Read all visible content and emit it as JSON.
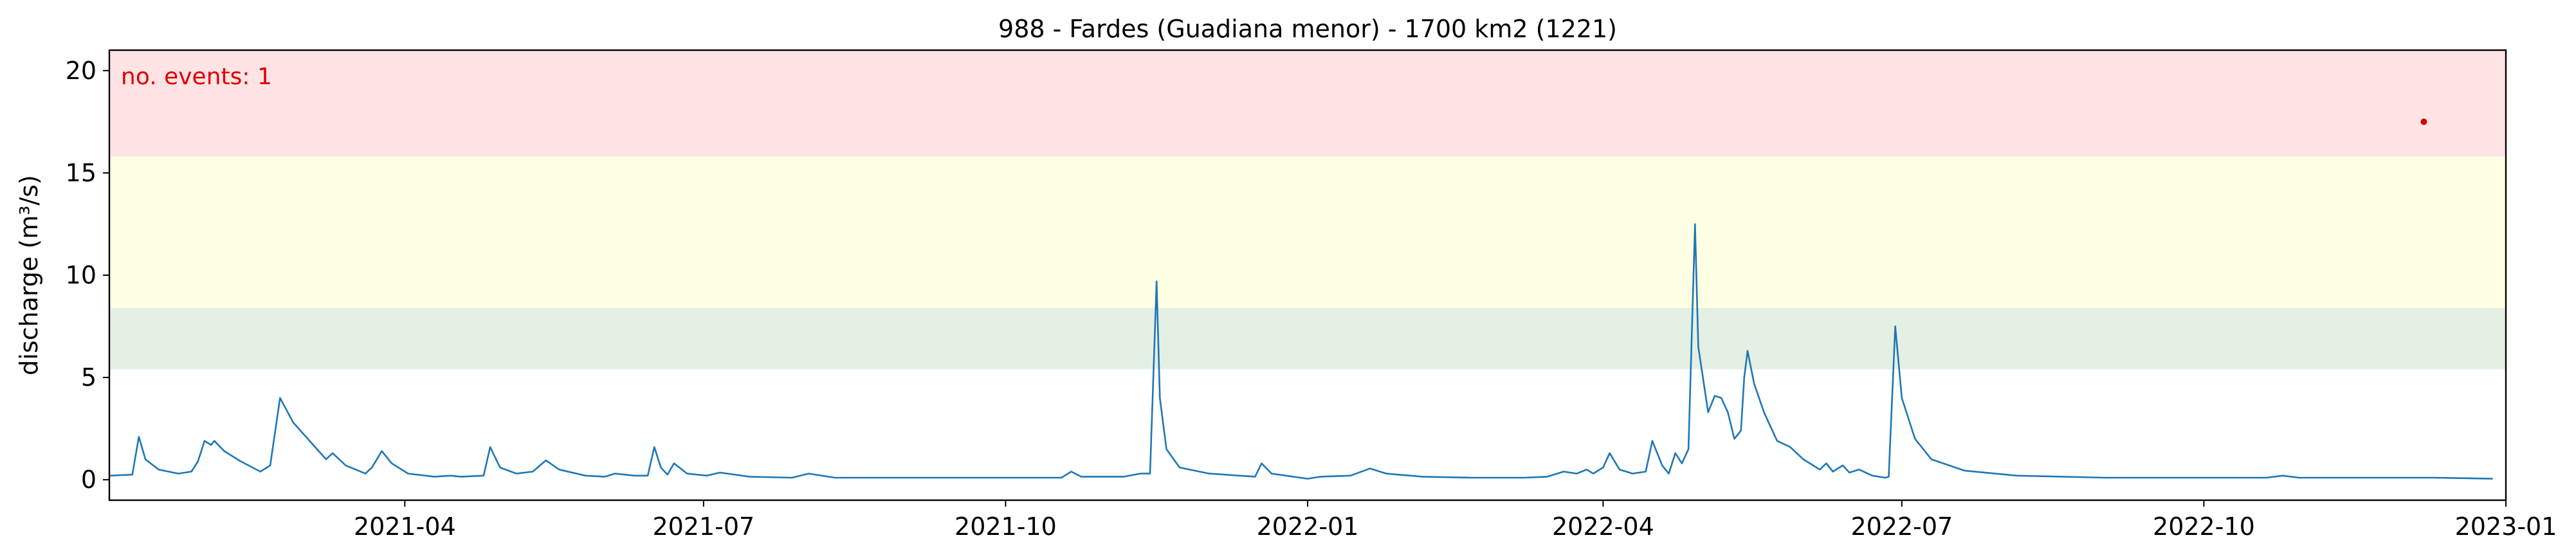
{
  "chart_data": {
    "type": "line",
    "title": "988 - Fardes (Guadiana menor) - 1700 km2 (1221)",
    "xlabel": "",
    "ylabel": "discharge (m³/s)",
    "annotation": "no. events: 1",
    "xlim": [
      "2021-01-01",
      "2023-01-01"
    ],
    "ylim": [
      -1,
      21
    ],
    "x_ticks": [
      "2021-04",
      "2021-07",
      "2021-10",
      "2022-01",
      "2022-04",
      "2022-07",
      "2022-10",
      "2023-01"
    ],
    "y_ticks": [
      0,
      5,
      10,
      15,
      20
    ],
    "grid": false,
    "threshold_bands": [
      {
        "from": 5.4,
        "to": 8.4,
        "color": "#e5f0e5"
      },
      {
        "from": 8.4,
        "to": 15.8,
        "color": "#ffffe3"
      },
      {
        "from": 15.8,
        "to": 21,
        "color": "#ffe3e5"
      }
    ],
    "series": [
      {
        "color": "#1f77b4",
        "points": [
          [
            "2021-01-01",
            0.2
          ],
          [
            "2021-01-08",
            0.25
          ],
          [
            "2021-01-10",
            2.1
          ],
          [
            "2021-01-12",
            1.0
          ],
          [
            "2021-01-16",
            0.5
          ],
          [
            "2021-01-22",
            0.3
          ],
          [
            "2021-01-26",
            0.4
          ],
          [
            "2021-01-28",
            0.9
          ],
          [
            "2021-01-30",
            1.9
          ],
          [
            "2021-02-01",
            1.7
          ],
          [
            "2021-02-02",
            1.9
          ],
          [
            "2021-02-05",
            1.4
          ],
          [
            "2021-02-10",
            0.9
          ],
          [
            "2021-02-16",
            0.4
          ],
          [
            "2021-02-19",
            0.7
          ],
          [
            "2021-02-22",
            4.0
          ],
          [
            "2021-02-26",
            2.8
          ],
          [
            "2021-03-03",
            1.9
          ],
          [
            "2021-03-08",
            1.0
          ],
          [
            "2021-03-10",
            1.3
          ],
          [
            "2021-03-14",
            0.7
          ],
          [
            "2021-03-20",
            0.3
          ],
          [
            "2021-03-22",
            0.6
          ],
          [
            "2021-03-25",
            1.4
          ],
          [
            "2021-03-28",
            0.8
          ],
          [
            "2021-04-02",
            0.3
          ],
          [
            "2021-04-10",
            0.15
          ],
          [
            "2021-04-15",
            0.2
          ],
          [
            "2021-04-18",
            0.15
          ],
          [
            "2021-04-25",
            0.2
          ],
          [
            "2021-04-27",
            1.6
          ],
          [
            "2021-04-30",
            0.6
          ],
          [
            "2021-05-05",
            0.3
          ],
          [
            "2021-05-10",
            0.4
          ],
          [
            "2021-05-14",
            0.95
          ],
          [
            "2021-05-18",
            0.5
          ],
          [
            "2021-05-26",
            0.2
          ],
          [
            "2021-06-01",
            0.15
          ],
          [
            "2021-06-04",
            0.3
          ],
          [
            "2021-06-10",
            0.2
          ],
          [
            "2021-06-14",
            0.2
          ],
          [
            "2021-06-16",
            1.6
          ],
          [
            "2021-06-18",
            0.6
          ],
          [
            "2021-06-20",
            0.25
          ],
          [
            "2021-06-22",
            0.8
          ],
          [
            "2021-06-26",
            0.3
          ],
          [
            "2021-07-02",
            0.2
          ],
          [
            "2021-07-06",
            0.35
          ],
          [
            "2021-07-15",
            0.15
          ],
          [
            "2021-07-28",
            0.1
          ],
          [
            "2021-08-02",
            0.3
          ],
          [
            "2021-08-10",
            0.1
          ],
          [
            "2021-09-01",
            0.1
          ],
          [
            "2021-09-20",
            0.1
          ],
          [
            "2021-10-01",
            0.1
          ],
          [
            "2021-10-18",
            0.1
          ],
          [
            "2021-10-21",
            0.4
          ],
          [
            "2021-10-24",
            0.15
          ],
          [
            "2021-11-06",
            0.15
          ],
          [
            "2021-11-11",
            0.3
          ],
          [
            "2021-11-14",
            0.3
          ],
          [
            "2021-11-16",
            9.7
          ],
          [
            "2021-11-17",
            4.0
          ],
          [
            "2021-11-19",
            1.5
          ],
          [
            "2021-11-23",
            0.6
          ],
          [
            "2021-12-02",
            0.3
          ],
          [
            "2021-12-16",
            0.15
          ],
          [
            "2021-12-18",
            0.8
          ],
          [
            "2021-12-21",
            0.3
          ],
          [
            "2022-01-05",
            0.15
          ],
          [
            "2022-01-14",
            0.2
          ],
          [
            "2022-01-20",
            0.55
          ],
          [
            "2022-01-25",
            0.3
          ],
          [
            "2022-02-05",
            0.15
          ],
          [
            "2022-02-20",
            0.1
          ],
          [
            "2022-03-08",
            0.1
          ],
          [
            "2022-03-15",
            0.15
          ],
          [
            "2022-03-20",
            0.4
          ],
          [
            "2022-03-24",
            0.3
          ],
          [
            "2022-03-27",
            0.5
          ],
          [
            "2022-03-29",
            0.3
          ],
          [
            "2022-04-01",
            0.6
          ],
          [
            "2022-04-03",
            1.3
          ],
          [
            "2022-04-06",
            0.5
          ],
          [
            "2022-04-10",
            0.3
          ],
          [
            "2022-04-14",
            0.4
          ],
          [
            "2022-04-16",
            1.9
          ],
          [
            "2022-04-19",
            0.7
          ],
          [
            "2022-04-21",
            0.3
          ],
          [
            "2022-04-23",
            1.3
          ],
          [
            "2022-04-25",
            0.8
          ],
          [
            "2022-04-27",
            1.5
          ],
          [
            "2022-04-28",
            7.0
          ],
          [
            "2022-04-29",
            12.5
          ],
          [
            "2022-04-30",
            6.5
          ],
          [
            "2022-05-03",
            3.3
          ],
          [
            "2022-05-05",
            4.1
          ],
          [
            "2022-05-07",
            4.0
          ],
          [
            "2022-05-09",
            3.3
          ],
          [
            "2022-05-11",
            2.0
          ],
          [
            "2022-05-13",
            2.4
          ],
          [
            "2022-05-14",
            5.0
          ],
          [
            "2022-05-15",
            6.3
          ],
          [
            "2022-05-17",
            4.7
          ],
          [
            "2022-05-20",
            3.3
          ],
          [
            "2022-05-24",
            1.9
          ],
          [
            "2022-05-28",
            1.6
          ],
          [
            "2022-06-01",
            1.0
          ],
          [
            "2022-06-04",
            0.7
          ],
          [
            "2022-06-06",
            0.5
          ],
          [
            "2022-06-08",
            0.8
          ],
          [
            "2022-06-10",
            0.4
          ],
          [
            "2022-06-13",
            0.7
          ],
          [
            "2022-06-15",
            0.35
          ],
          [
            "2022-06-18",
            0.5
          ],
          [
            "2022-06-22",
            0.2
          ],
          [
            "2022-06-26",
            0.1
          ],
          [
            "2022-06-27",
            0.15
          ],
          [
            "2022-06-29",
            7.5
          ],
          [
            "2022-07-01",
            4.0
          ],
          [
            "2022-07-05",
            2.0
          ],
          [
            "2022-07-10",
            1.0
          ],
          [
            "2022-07-20",
            0.45
          ],
          [
            "2022-08-05",
            0.2
          ],
          [
            "2022-09-01",
            0.1
          ],
          [
            "2022-10-01",
            0.1
          ],
          [
            "2022-10-20",
            0.1
          ],
          [
            "2022-10-25",
            0.2
          ],
          [
            "2022-10-30",
            0.1
          ],
          [
            "2022-11-01",
            0.1
          ],
          [
            "2022-11-26",
            0.1
          ],
          [
            "2022-12-10",
            0.1
          ],
          [
            "2022-12-28",
            0.05
          ],
          [
            "2022-01-01",
            0.05
          ]
        ]
      }
    ],
    "event_marker": {
      "x": "2022-12-07",
      "y": 17.5,
      "color": "#d00000"
    }
  }
}
